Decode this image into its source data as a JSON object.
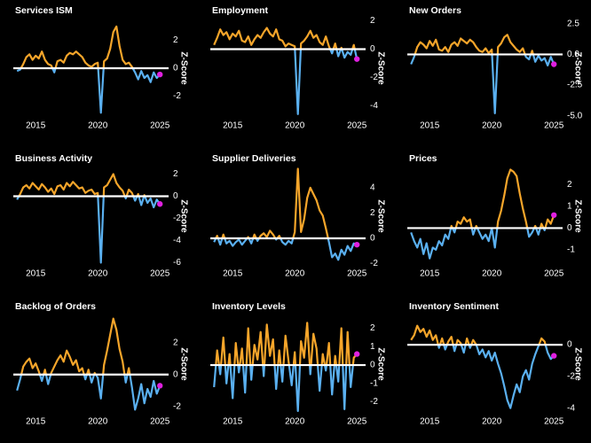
{
  "chart_data": [
    {
      "type": "line",
      "title": "Services ISM",
      "y_label": "Z-Score",
      "pos_color": "#f5a52a",
      "neg_color": "#5ab0f0",
      "marker_color": "#e020e0",
      "hline": 0,
      "xlim": [
        2013.2,
        2025.7
      ],
      "xticks": [
        2015,
        2020,
        2025
      ],
      "ylim": [
        -3.5,
        3.5
      ],
      "yticks": [
        -2,
        0,
        2
      ],
      "x": [
        2013.5,
        2013.75,
        2014,
        2014.25,
        2014.5,
        2014.75,
        2015,
        2015.25,
        2015.5,
        2015.75,
        2016,
        2016.25,
        2016.5,
        2016.75,
        2017,
        2017.25,
        2017.5,
        2017.75,
        2018,
        2018.25,
        2018.5,
        2018.75,
        2019,
        2019.25,
        2019.5,
        2019.75,
        2020,
        2020.25,
        2020.5,
        2020.75,
        2021,
        2021.25,
        2021.5,
        2021.75,
        2022,
        2022.25,
        2022.5,
        2022.75,
        2023,
        2023.25,
        2023.5,
        2023.75,
        2024,
        2024.25,
        2024.5,
        2024.75,
        2025
      ],
      "values": [
        -0.2,
        -0.1,
        0.3,
        0.8,
        1.0,
        0.6,
        0.9,
        0.7,
        1.2,
        0.6,
        0.3,
        0.2,
        -0.3,
        0.5,
        0.6,
        0.4,
        0.9,
        1.1,
        1.0,
        1.2,
        1.0,
        0.8,
        0.4,
        0.2,
        0.1,
        0.3,
        0.4,
        -3.2,
        0.5,
        0.7,
        1.4,
        2.6,
        3.0,
        1.6,
        0.6,
        0.3,
        0.4,
        0.1,
        -0.3,
        -0.8,
        -0.2,
        -0.7,
        -0.5,
        -1.0,
        -0.3,
        -0.7,
        -0.45
      ]
    },
    {
      "type": "line",
      "title": "Employment",
      "y_label": "Z-Score",
      "pos_color": "#f5a52a",
      "neg_color": "#5ab0f0",
      "marker_color": "#e020e0",
      "hline": 0,
      "xlim": [
        2013.2,
        2025.7
      ],
      "xticks": [
        2015,
        2020,
        2025
      ],
      "ylim": [
        -4.8,
        2.1
      ],
      "yticks": [
        -4,
        -2,
        0,
        2
      ],
      "x": [
        2013.5,
        2013.75,
        2014,
        2014.25,
        2014.5,
        2014.75,
        2015,
        2015.25,
        2015.5,
        2015.75,
        2016,
        2016.25,
        2016.5,
        2016.75,
        2017,
        2017.25,
        2017.5,
        2017.75,
        2018,
        2018.25,
        2018.5,
        2018.75,
        2019,
        2019.25,
        2019.5,
        2019.75,
        2020,
        2020.25,
        2020.5,
        2020.75,
        2021,
        2021.25,
        2021.5,
        2021.75,
        2022,
        2022.25,
        2022.5,
        2022.75,
        2023,
        2023.25,
        2023.5,
        2023.75,
        2024,
        2024.25,
        2024.5,
        2024.75,
        2025
      ],
      "values": [
        0.3,
        0.8,
        1.4,
        1.0,
        1.2,
        0.7,
        1.1,
        0.9,
        1.3,
        0.6,
        0.5,
        0.9,
        0.3,
        0.7,
        1.0,
        0.8,
        1.2,
        1.5,
        1.1,
        0.9,
        1.4,
        0.7,
        0.6,
        0.2,
        0.4,
        0.3,
        0.2,
        -4.6,
        0.4,
        0.6,
        0.9,
        1.3,
        0.8,
        1.0,
        0.5,
        0.3,
        0.9,
        0.2,
        -0.3,
        0.4,
        -0.5,
        0.1,
        -0.6,
        -0.2,
        -0.4,
        0.3,
        -0.7
      ]
    },
    {
      "type": "line",
      "title": "New Orders",
      "y_label": "Z-Score",
      "pos_color": "#f5a52a",
      "neg_color": "#5ab0f0",
      "marker_color": "#e020e0",
      "hline": 0,
      "xlim": [
        2013.2,
        2025.7
      ],
      "xticks": [
        2015,
        2020,
        2025
      ],
      "ylim": [
        -5.1,
        2.85
      ],
      "yticks": [
        {
          "value": -5,
          "label": "-5.0"
        },
        -2.5,
        {
          "value": 0,
          "label": "0.0"
        },
        2.5
      ],
      "x": [
        2013.5,
        2013.75,
        2014,
        2014.25,
        2014.5,
        2014.75,
        2015,
        2015.25,
        2015.5,
        2015.75,
        2016,
        2016.25,
        2016.5,
        2016.75,
        2017,
        2017.25,
        2017.5,
        2017.75,
        2018,
        2018.25,
        2018.5,
        2018.75,
        2019,
        2019.25,
        2019.5,
        2019.75,
        2020,
        2020.25,
        2020.5,
        2020.75,
        2021,
        2021.25,
        2021.5,
        2021.75,
        2022,
        2022.25,
        2022.5,
        2022.75,
        2023,
        2023.25,
        2023.5,
        2023.75,
        2024,
        2024.25,
        2024.5,
        2024.75,
        2025
      ],
      "values": [
        -0.8,
        -0.2,
        0.6,
        1.0,
        0.8,
        0.5,
        1.1,
        0.7,
        1.2,
        0.4,
        0.3,
        0.6,
        0.2,
        0.8,
        1.0,
        0.7,
        1.3,
        1.1,
        0.9,
        1.2,
        1.0,
        0.6,
        0.3,
        0.2,
        0.5,
        0.1,
        0.4,
        -4.8,
        0.6,
        0.9,
        1.4,
        1.6,
        1.0,
        0.7,
        0.4,
        0.2,
        0.5,
        -0.2,
        -0.4,
        0.3,
        -0.6,
        -0.1,
        -0.5,
        -0.3,
        -0.9,
        -0.2,
        -0.8
      ]
    },
    {
      "type": "line",
      "title": "Business Activity",
      "y_label": "Z-Score",
      "pos_color": "#f5a52a",
      "neg_color": "#5ab0f0",
      "marker_color": "#e020e0",
      "hline": 0,
      "xlim": [
        2013.2,
        2025.7
      ],
      "xticks": [
        2015,
        2020,
        2025
      ],
      "ylim": [
        -6.2,
        2.6
      ],
      "yticks": [
        -6,
        -4,
        -2,
        0,
        2
      ],
      "x": [
        2013.5,
        2013.75,
        2014,
        2014.25,
        2014.5,
        2014.75,
        2015,
        2015.25,
        2015.5,
        2015.75,
        2016,
        2016.25,
        2016.5,
        2016.75,
        2017,
        2017.25,
        2017.5,
        2017.75,
        2018,
        2018.25,
        2018.5,
        2018.75,
        2019,
        2019.25,
        2019.5,
        2019.75,
        2020,
        2020.25,
        2020.5,
        2020.75,
        2021,
        2021.25,
        2021.5,
        2021.75,
        2022,
        2022.25,
        2022.5,
        2022.75,
        2023,
        2023.25,
        2023.5,
        2023.75,
        2024,
        2024.25,
        2024.5,
        2024.75,
        2025
      ],
      "values": [
        -0.3,
        0.2,
        0.8,
        1.0,
        0.7,
        1.2,
        0.9,
        0.6,
        1.1,
        0.8,
        0.4,
        0.7,
        0.2,
        0.9,
        1.0,
        0.6,
        1.2,
        0.9,
        1.3,
        1.0,
        0.7,
        0.8,
        0.3,
        0.5,
        0.6,
        0.2,
        0.3,
        -6.0,
        0.8,
        1.0,
        1.5,
        2.0,
        1.2,
        0.8,
        0.5,
        -0.2,
        0.6,
        0.3,
        -0.4,
        0.2,
        -0.8,
        0.1,
        -0.6,
        -0.2,
        -1.0,
        -0.3,
        -0.7
      ]
    },
    {
      "type": "line",
      "title": "Supplier Deliveries",
      "y_label": "Z-Score",
      "pos_color": "#f5a52a",
      "neg_color": "#5ab0f0",
      "marker_color": "#e020e0",
      "hline": 0,
      "xlim": [
        2013.2,
        2025.7
      ],
      "xticks": [
        2015,
        2020,
        2025
      ],
      "ylim": [
        -2.1,
        5.6
      ],
      "yticks": [
        -2,
        0,
        2,
        4
      ],
      "x": [
        2013.5,
        2013.75,
        2014,
        2014.25,
        2014.5,
        2014.75,
        2015,
        2015.25,
        2015.5,
        2015.75,
        2016,
        2016.25,
        2016.5,
        2016.75,
        2017,
        2017.25,
        2017.5,
        2017.75,
        2018,
        2018.25,
        2018.5,
        2018.75,
        2019,
        2019.25,
        2019.5,
        2019.75,
        2020,
        2020.25,
        2020.5,
        2020.75,
        2021,
        2021.25,
        2021.5,
        2021.75,
        2022,
        2022.25,
        2022.5,
        2022.75,
        2023,
        2023.25,
        2023.5,
        2023.75,
        2024,
        2024.25,
        2024.5,
        2024.75,
        2025
      ],
      "values": [
        -0.3,
        0.2,
        -0.5,
        0.3,
        -0.4,
        -0.2,
        -0.6,
        -0.3,
        -0.1,
        -0.5,
        -0.2,
        0.1,
        -0.4,
        0.3,
        -0.2,
        0.2,
        0.4,
        0.1,
        0.6,
        0.3,
        -0.1,
        0.2,
        -0.3,
        -0.5,
        -0.2,
        -0.4,
        0.5,
        5.5,
        0.5,
        1.5,
        3.2,
        4.0,
        3.5,
        3.0,
        2.2,
        1.8,
        0.8,
        -0.3,
        -1.5,
        -1.2,
        -1.7,
        -0.9,
        -1.3,
        -0.6,
        -1.0,
        -0.4,
        -0.5
      ]
    },
    {
      "type": "line",
      "title": "Prices",
      "y_label": "Z-Score",
      "pos_color": "#f5a52a",
      "neg_color": "#5ab0f0",
      "marker_color": "#e020e0",
      "hline": 0,
      "xlim": [
        2013.2,
        2025.7
      ],
      "xticks": [
        2015,
        2020,
        2025
      ],
      "ylim": [
        -1.7,
        2.8
      ],
      "yticks": [
        -1,
        0,
        1,
        2
      ],
      "x": [
        2013.5,
        2013.75,
        2014,
        2014.25,
        2014.5,
        2014.75,
        2015,
        2015.25,
        2015.5,
        2015.75,
        2016,
        2016.25,
        2016.5,
        2016.75,
        2017,
        2017.25,
        2017.5,
        2017.75,
        2018,
        2018.25,
        2018.5,
        2018.75,
        2019,
        2019.25,
        2019.5,
        2019.75,
        2020,
        2020.25,
        2020.5,
        2020.75,
        2021,
        2021.25,
        2021.5,
        2021.75,
        2022,
        2022.25,
        2022.5,
        2022.75,
        2023,
        2023.25,
        2023.5,
        2023.75,
        2024,
        2024.25,
        2024.5,
        2024.75,
        2025
      ],
      "values": [
        -0.2,
        -0.6,
        -0.9,
        -0.5,
        -1.2,
        -0.7,
        -1.4,
        -0.9,
        -1.0,
        -0.6,
        -0.8,
        -0.3,
        -0.5,
        0.1,
        -0.2,
        0.3,
        0.2,
        0.5,
        0.3,
        0.4,
        -0.3,
        0.1,
        -0.2,
        -0.5,
        -0.3,
        -0.6,
        0.0,
        -0.9,
        0.3,
        0.8,
        1.5,
        2.3,
        2.7,
        2.6,
        2.4,
        1.6,
        0.9,
        0.3,
        -0.4,
        -0.2,
        0.1,
        -0.3,
        0.2,
        -0.1,
        0.4,
        0.2,
        0.6
      ]
    },
    {
      "type": "line",
      "title": "Backlog of Orders",
      "y_label": "Z-Score",
      "pos_color": "#f5a52a",
      "neg_color": "#5ab0f0",
      "marker_color": "#e020e0",
      "hline": 0,
      "xlim": [
        2013.2,
        2025.7
      ],
      "xticks": [
        2015,
        2020,
        2025
      ],
      "ylim": [
        -2.4,
        3.7
      ],
      "yticks": [
        -2,
        0,
        2
      ],
      "x": [
        2013.5,
        2013.75,
        2014,
        2014.25,
        2014.5,
        2014.75,
        2015,
        2015.25,
        2015.5,
        2015.75,
        2016,
        2016.25,
        2016.5,
        2016.75,
        2017,
        2017.25,
        2017.5,
        2017.75,
        2018,
        2018.25,
        2018.5,
        2018.75,
        2019,
        2019.25,
        2019.5,
        2019.75,
        2020,
        2020.25,
        2020.5,
        2020.75,
        2021,
        2021.25,
        2021.5,
        2021.75,
        2022,
        2022.25,
        2022.5,
        2022.75,
        2023,
        2023.25,
        2023.5,
        2023.75,
        2024,
        2024.25,
        2024.5,
        2024.75,
        2025
      ],
      "values": [
        -1.0,
        -0.3,
        0.5,
        0.8,
        1.0,
        0.4,
        0.7,
        0.2,
        -0.4,
        0.3,
        -0.6,
        0.1,
        0.5,
        0.9,
        1.2,
        0.8,
        1.5,
        1.1,
        0.6,
        0.9,
        0.2,
        0.4,
        -0.3,
        0.3,
        -0.5,
        0.1,
        -0.2,
        -1.5,
        0.6,
        1.5,
        2.5,
        3.5,
        2.8,
        1.6,
        0.8,
        -0.5,
        0.4,
        -0.8,
        -2.2,
        -1.5,
        -0.6,
        -1.8,
        -0.9,
        -1.4,
        -0.4,
        -1.2,
        -0.7
      ]
    },
    {
      "type": "line",
      "title": "Inventory Levels",
      "y_label": "Z-Score",
      "pos_color": "#f5a52a",
      "neg_color": "#5ab0f0",
      "marker_color": "#e020e0",
      "hline": 0,
      "xlim": [
        2013.2,
        2025.7
      ],
      "xticks": [
        2015,
        2020,
        2025
      ],
      "ylim": [
        -2.6,
        2.7
      ],
      "yticks": [
        -2,
        -1,
        0,
        1,
        2
      ],
      "x": [
        2013.5,
        2013.75,
        2014,
        2014.25,
        2014.5,
        2014.75,
        2015,
        2015.25,
        2015.5,
        2015.75,
        2016,
        2016.25,
        2016.5,
        2016.75,
        2017,
        2017.25,
        2017.5,
        2017.75,
        2018,
        2018.25,
        2018.5,
        2018.75,
        2019,
        2019.25,
        2019.5,
        2019.75,
        2020,
        2020.25,
        2020.5,
        2020.75,
        2021,
        2021.25,
        2021.5,
        2021.75,
        2022,
        2022.25,
        2022.5,
        2022.75,
        2023,
        2023.25,
        2023.5,
        2023.75,
        2024,
        2024.25,
        2024.5,
        2024.75,
        2025
      ],
      "values": [
        -1.2,
        0.8,
        -0.5,
        1.5,
        -1.0,
        0.6,
        -1.8,
        1.2,
        -0.4,
        0.9,
        -1.5,
        2.0,
        -0.8,
        1.1,
        0.3,
        1.8,
        -0.6,
        2.2,
        0.5,
        1.4,
        -1.3,
        0.8,
        -0.9,
        1.6,
        0.2,
        -1.1,
        0.7,
        -2.5,
        1.3,
        0.4,
        2.3,
        -0.5,
        1.7,
        0.9,
        -1.4,
        0.6,
        -0.3,
        1.2,
        -1.6,
        0.5,
        -0.9,
        2.0,
        -2.4,
        1.8,
        -1.2,
        0.4,
        0.6
      ]
    },
    {
      "type": "line",
      "title": "Inventory Sentiment",
      "y_label": "Z-Score",
      "pos_color": "#f5a52a",
      "neg_color": "#5ab0f0",
      "marker_color": "#e020e0",
      "hline": 0,
      "xlim": [
        2013.2,
        2025.7
      ],
      "xticks": [
        2015,
        2020,
        2025
      ],
      "ylim": [
        -4.3,
        1.85
      ],
      "yticks": [
        -4,
        -2,
        0
      ],
      "x": [
        2013.5,
        2013.75,
        2014,
        2014.25,
        2014.5,
        2014.75,
        2015,
        2015.25,
        2015.5,
        2015.75,
        2016,
        2016.25,
        2016.5,
        2016.75,
        2017,
        2017.25,
        2017.5,
        2017.75,
        2018,
        2018.25,
        2018.5,
        2018.75,
        2019,
        2019.25,
        2019.5,
        2019.75,
        2020,
        2020.25,
        2020.5,
        2020.75,
        2021,
        2021.25,
        2021.5,
        2021.75,
        2022,
        2022.25,
        2022.5,
        2022.75,
        2023,
        2023.25,
        2023.5,
        2023.75,
        2024,
        2024.25,
        2024.5,
        2024.75,
        2025
      ],
      "values": [
        0.3,
        0.6,
        1.2,
        0.8,
        1.0,
        0.5,
        0.9,
        0.3,
        0.6,
        -0.2,
        0.4,
        -0.3,
        0.2,
        0.5,
        -0.4,
        0.3,
        0.1,
        -0.5,
        0.4,
        -0.2,
        0.3,
        0.0,
        -0.6,
        -0.3,
        -0.8,
        -0.4,
        -1.0,
        -0.5,
        -1.2,
        -1.8,
        -2.6,
        -3.5,
        -4.0,
        -3.2,
        -2.5,
        -3.0,
        -2.0,
        -1.6,
        -2.2,
        -1.2,
        -0.6,
        -0.1,
        0.4,
        0.2,
        -0.5,
        -0.9,
        -0.7
      ]
    }
  ]
}
